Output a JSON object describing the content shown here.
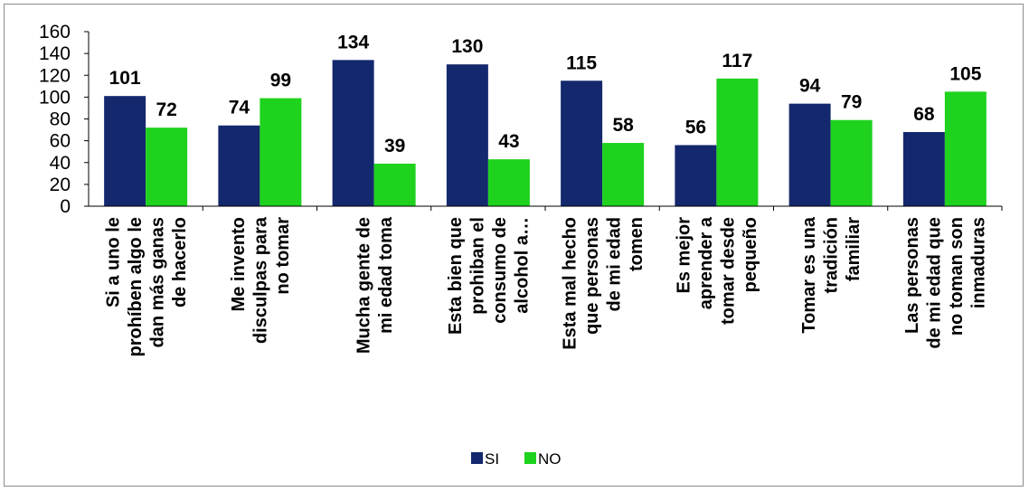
{
  "chart_data": {
    "type": "bar",
    "categories": [
      [
        "Si a uno le",
        "prohíben algo le",
        "dan más ganas",
        "de hacerlo"
      ],
      [
        "Me invento",
        "disculpas para",
        "no tomar"
      ],
      [
        "Mucha gente de",
        "mi edad toma"
      ],
      [
        "Esta bien que",
        "prohiban el",
        "consumo de",
        "alcohol a…"
      ],
      [
        "Esta mal hecho",
        "que personas",
        "de mi edad",
        "tomen"
      ],
      [
        "Es mejor",
        "aprender a",
        "tomar desde",
        "pequeño"
      ],
      [
        "Tomar es una",
        "tradición",
        "familiar"
      ],
      [
        "Las personas",
        "de mi edad que",
        "no toman son",
        "inmaduras"
      ]
    ],
    "series": [
      {
        "name": "SI",
        "color": "#14286e",
        "values": [
          101,
          74,
          134,
          130,
          115,
          56,
          94,
          68
        ]
      },
      {
        "name": "NO",
        "color": "#1ed21e",
        "values": [
          72,
          99,
          39,
          43,
          58,
          117,
          79,
          105
        ]
      }
    ],
    "yticks": [
      "0",
      "20",
      "40",
      "60",
      "80",
      "100",
      "120",
      "140",
      "160"
    ],
    "ylim": [
      0,
      160
    ],
    "legend_position": "bottom",
    "grid": false
  }
}
